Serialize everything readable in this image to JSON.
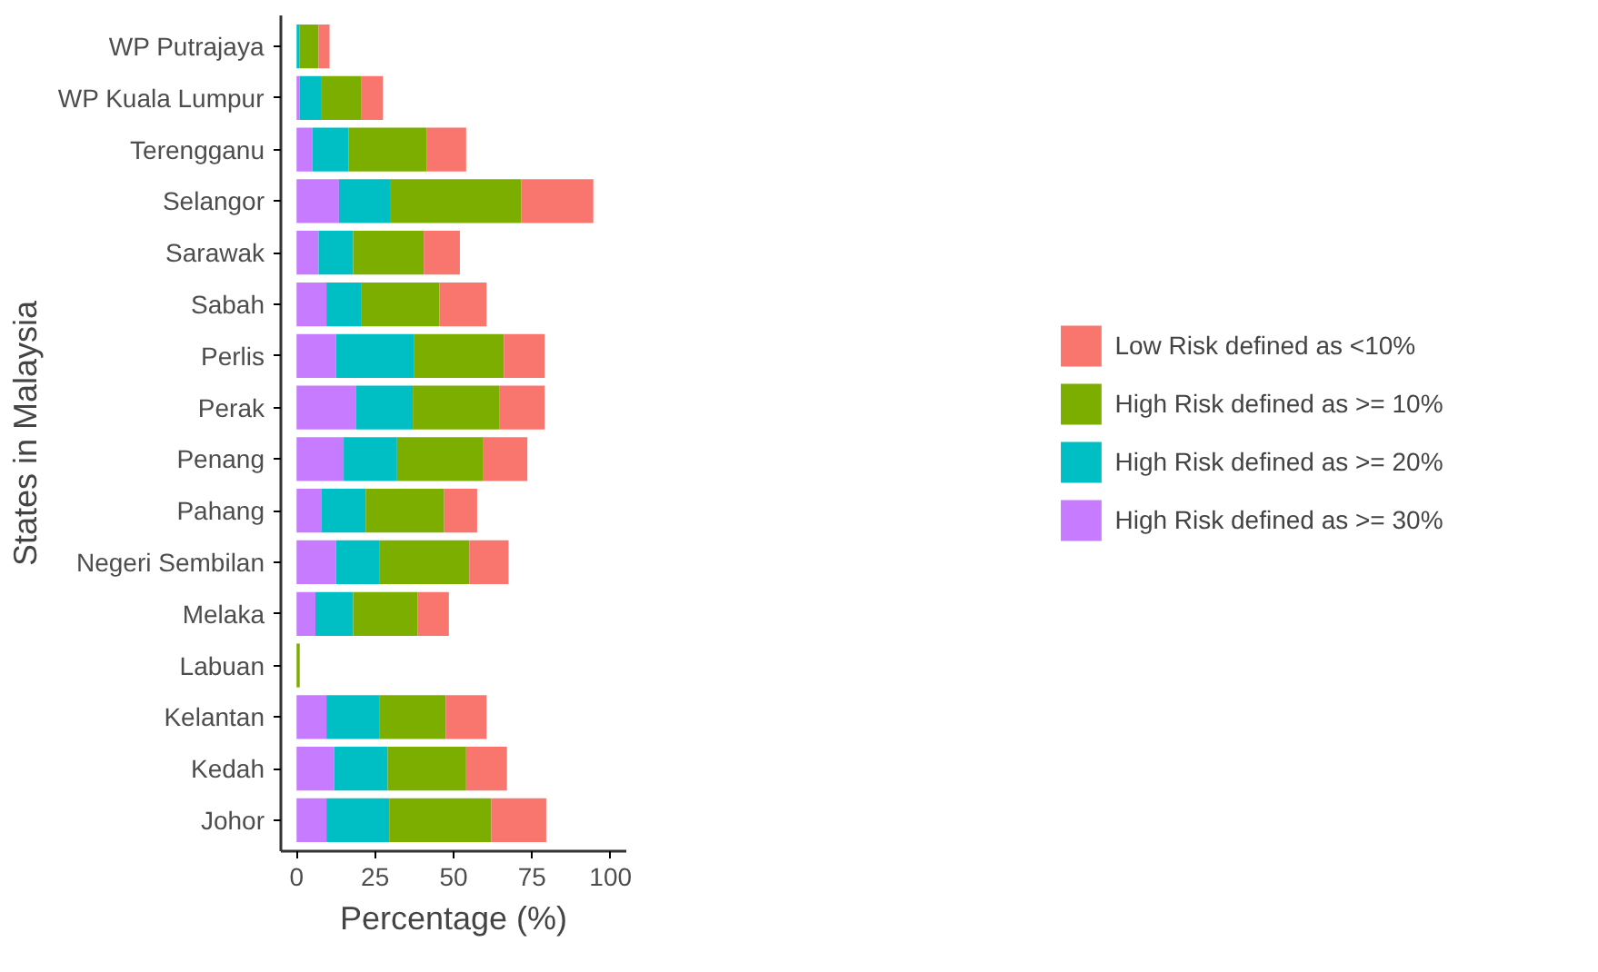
{
  "chart_data": {
    "type": "bar",
    "orientation": "horizontal",
    "stacked": true,
    "xlabel": "Percentage (%)",
    "ylabel": "States in Malaysia",
    "categories": [
      "WP Putrajaya",
      "WP Kuala Lumpur",
      "Terengganu",
      "Selangor",
      "Sarawak",
      "Sabah",
      "Perlis",
      "Perak",
      "Penang",
      "Pahang",
      "Negeri Sembilan",
      "Melaka",
      "Labuan",
      "Kelantan",
      "Kedah",
      "Johor"
    ],
    "series": [
      {
        "name": "High Risk defined as >= 30%",
        "color": "#c77cff",
        "values": [
          0,
          1,
          5,
          13.5,
          7,
          9.5,
          12.5,
          19,
          15,
          8,
          12.5,
          6,
          0,
          9.5,
          12,
          9.5
        ]
      },
      {
        "name": "High Risk defined as >= 20%",
        "color": "#00bfc4",
        "values": [
          1,
          7,
          11.5,
          16.5,
          11,
          11,
          25,
          18,
          17,
          14,
          14,
          12,
          0,
          17,
          17,
          20
        ]
      },
      {
        "name": "High Risk defined as >= 10%",
        "color": "#7cae00",
        "values": [
          6,
          12.5,
          25,
          41.5,
          22.5,
          25,
          28.5,
          27.5,
          27.5,
          25,
          28.5,
          20.5,
          1,
          21,
          25,
          32.5
        ]
      },
      {
        "name": "Low Risk defined as <10%",
        "color": "#f8766d",
        "values": [
          3.5,
          7,
          12.5,
          23,
          11.5,
          15,
          13,
          14.5,
          14,
          10.5,
          12.5,
          10,
          0,
          13,
          13,
          17.5
        ]
      }
    ],
    "xlim": [
      -5,
      105
    ],
    "xticks": [
      0,
      25,
      50,
      75,
      100
    ],
    "grid": false,
    "legend": "right"
  }
}
